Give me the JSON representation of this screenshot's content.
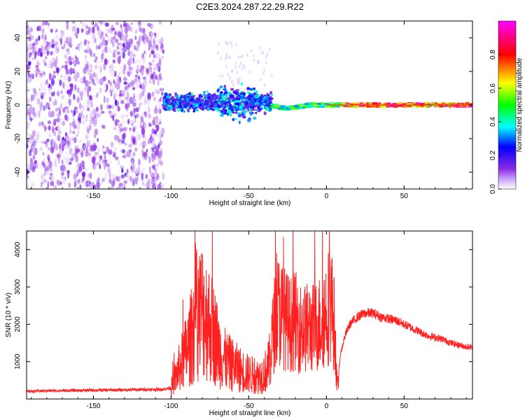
{
  "figure": {
    "title": "C2E3.2024.287.22.29.R22"
  },
  "chart_data": [
    {
      "type": "heatmap",
      "xlabel": "Height of straight line (km)",
      "ylabel": "Frequency (Hz)",
      "xlim": [
        -193,
        94
      ],
      "ylim": [
        -50,
        50
      ],
      "xticks": [
        -150,
        -100,
        -50,
        0,
        50
      ],
      "yticks": [
        -40,
        -20,
        0,
        20,
        40
      ],
      "colorbar": {
        "label": "Normalized spectral amplitude",
        "range": [
          0,
          1
        ],
        "ticks": [
          "0.0",
          "0.2",
          "0.4",
          "0.6",
          "0.8"
        ],
        "tick_values": [
          0.0,
          0.2,
          0.4,
          0.6,
          0.8
        ],
        "colors": [
          "#ffffff",
          "#8a2be2",
          "#0000ff",
          "#00ffff",
          "#00ff00",
          "#ffff00",
          "#ff0000",
          "#ff00ff"
        ]
      },
      "regions": [
        {
          "description_x_range": [
            -193,
            -105
          ],
          "frequency_range": [
            -50,
            50
          ],
          "amplitude": [
            0.0,
            0.15
          ]
        },
        {
          "description_x_range": [
            -105,
            -35
          ],
          "frequency_range": [
            -5,
            10
          ],
          "amplitude": [
            0.15,
            0.5
          ]
        },
        {
          "description_x_range": [
            -35,
            94
          ],
          "frequency_range": [
            -2,
            2
          ],
          "amplitude": [
            0.3,
            1.0
          ]
        }
      ],
      "grid": false
    },
    {
      "type": "line",
      "xlabel": "Height of straight line (km)",
      "ylabel": "SNR (10 * v/v)",
      "xlim": [
        -193,
        94
      ],
      "ylim": [
        0,
        4500
      ],
      "xticks": [
        -150,
        -100,
        -50,
        0,
        50
      ],
      "yticks": [
        1000,
        2000,
        3000,
        4000
      ],
      "series": [
        {
          "color": "#ff2020",
          "x": [
            -193,
            -180,
            -160,
            -140,
            -120,
            -105,
            -100,
            -96,
            -92,
            -88,
            -84,
            -80,
            -76,
            -72,
            -68,
            -64,
            -60,
            -56,
            -52,
            -48,
            -44,
            -40,
            -37,
            -35,
            -32,
            -29,
            -26,
            -23,
            -20,
            -17,
            -14,
            -11,
            -8,
            -5,
            -2,
            0,
            3,
            5,
            7,
            9,
            12,
            15,
            20,
            25,
            30,
            35,
            40,
            45,
            50,
            55,
            60,
            65,
            70,
            75,
            80,
            85,
            90,
            94
          ],
          "y": [
            200,
            220,
            230,
            240,
            250,
            260,
            300,
            700,
            1100,
            1500,
            2200,
            2400,
            2100,
            1700,
            1200,
            1000,
            900,
            800,
            700,
            650,
            600,
            700,
            900,
            1600,
            2400,
            2300,
            2100,
            2000,
            2100,
            1900,
            1900,
            1900,
            1900,
            2000,
            2200,
            2400,
            2600,
            2000,
            300,
            1200,
            1700,
            2000,
            2200,
            2300,
            2300,
            2200,
            2150,
            2100,
            2000,
            1900,
            1800,
            1700,
            1650,
            1600,
            1500,
            1450,
            1400,
            1380
          ]
        }
      ],
      "grid": false
    }
  ]
}
